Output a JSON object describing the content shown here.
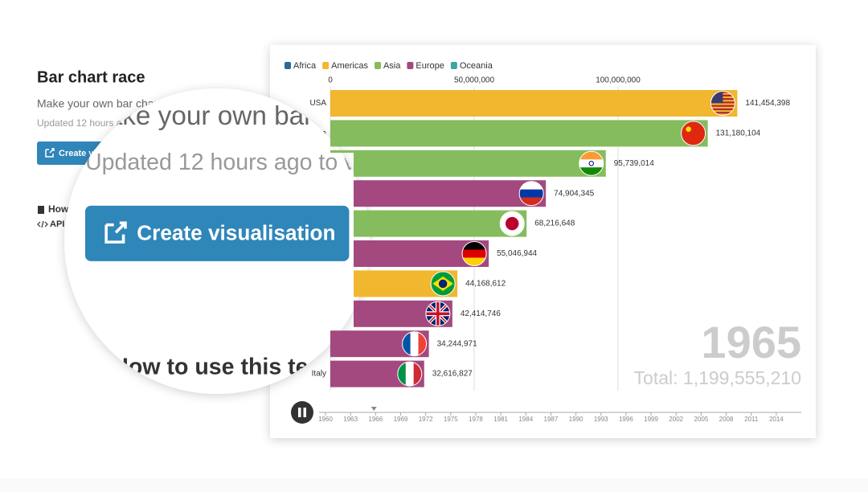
{
  "page": {
    "title": "Bar chart race",
    "description": "Make your own bar chart race",
    "updated": "Updated 12 hours ago to v",
    "button": "Create visualisation",
    "how": "How to use this template",
    "api": "API"
  },
  "chart_data": {
    "type": "bar",
    "orientation": "horizontal",
    "legend": [
      {
        "name": "Africa",
        "color": "#2b6a9b"
      },
      {
        "name": "Americas",
        "color": "#f0b72f"
      },
      {
        "name": "Asia",
        "color": "#85bc5e"
      },
      {
        "name": "Europe",
        "color": "#a3497f"
      },
      {
        "name": "Oceania",
        "color": "#3aa8a0"
      }
    ],
    "categories": [
      "USA",
      "China",
      null,
      null,
      null,
      null,
      null,
      null,
      null,
      "Italy"
    ],
    "colors": [
      "#f0b72f",
      "#85bc5e",
      "#85bc5e",
      "#a3497f",
      "#85bc5e",
      "#a3497f",
      "#f0b72f",
      "#a3497f",
      "#a3497f",
      "#a3497f"
    ],
    "values": [
      141454398,
      131180104,
      95739014,
      74904345,
      68216648,
      55046944,
      44168612,
      42414746,
      34244971,
      32616827
    ],
    "value_labels": [
      "141,454,398",
      "131,180,104",
      "95,739,014",
      "74,904,345",
      "68,216,648",
      "55,046,944",
      "44,168,612",
      "42,414,746",
      "34,244,971",
      "32,616,827"
    ],
    "xlim": [
      0,
      150000000
    ],
    "xticks": [
      0,
      {
        "value": 50000000,
        "label": "50,000,000"
      },
      {
        "value": 100000000,
        "label": "100,000,000"
      }
    ],
    "grid": true,
    "year": "1965",
    "total": "Total: 1,199,555,210",
    "timeline": {
      "xlim": [
        1960,
        2017
      ],
      "xticks": [
        1960,
        1963,
        1966,
        1969,
        1972,
        1975,
        1978,
        1981,
        1984,
        1987,
        1990,
        1993,
        1996,
        1999,
        2002,
        2005,
        2008,
        2011,
        2014
      ],
      "current": 1965.8
    }
  }
}
